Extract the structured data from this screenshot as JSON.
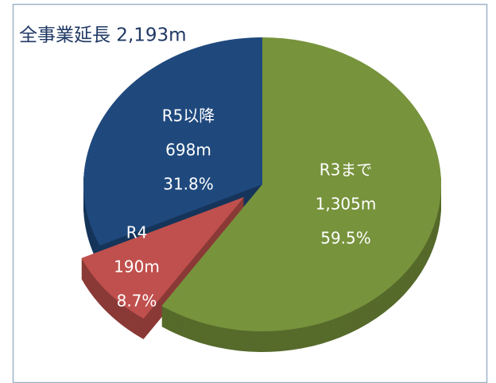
{
  "chart_data": {
    "type": "pie",
    "title": "全事業延長  2,193m",
    "categories": [
      "R3まで",
      "R4",
      "R5以降"
    ],
    "values": [
      1305,
      190,
      698
    ],
    "value_labels": [
      "1,305m",
      "190m",
      "698m"
    ],
    "percents": [
      59.5,
      8.7,
      31.8
    ],
    "percent_labels": [
      "59.5%",
      "8.7%",
      "31.8%"
    ],
    "colors": [
      "#77933c",
      "#c0504d",
      "#1f497d"
    ],
    "exploded": [
      false,
      true,
      false
    ]
  }
}
